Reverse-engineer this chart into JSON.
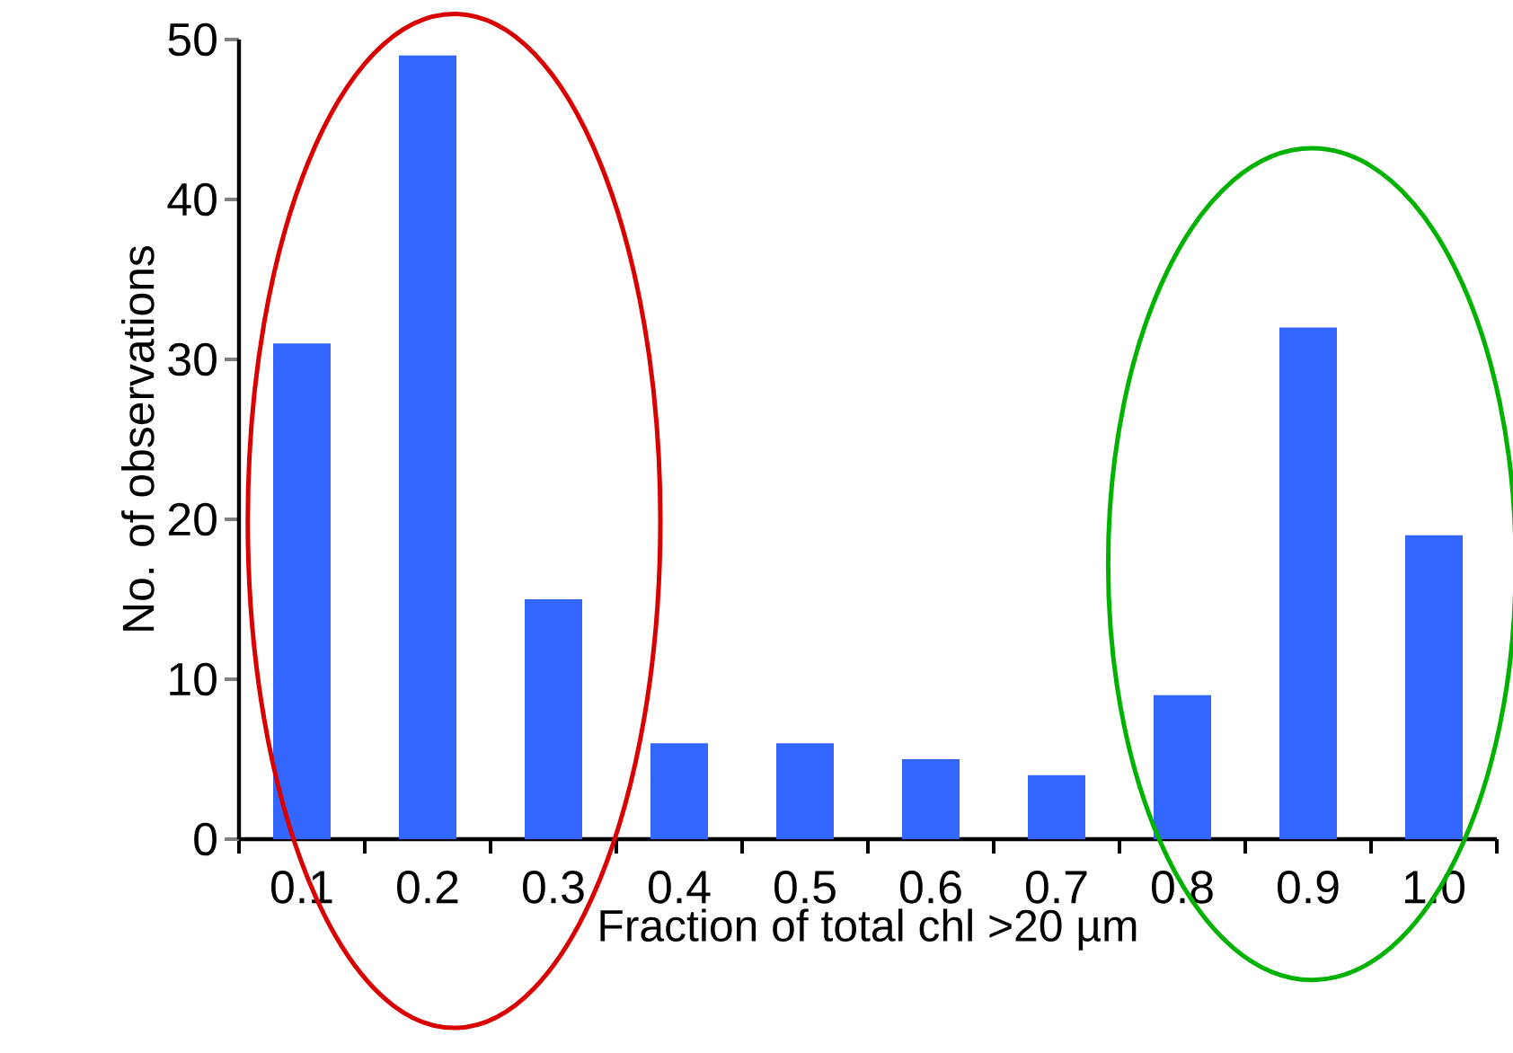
{
  "chart_data": {
    "type": "bar",
    "categories": [
      "0.1",
      "0.2",
      "0.3",
      "0.4",
      "0.5",
      "0.6",
      "0.7",
      "0.8",
      "0.9",
      "1.0"
    ],
    "values": [
      31,
      49,
      15,
      6,
      6,
      5,
      4,
      9,
      32,
      19
    ],
    "color": "#3366ff",
    "xlabel": "Fraction of total chl >20 µm",
    "ylabel": "No. of observations",
    "ylim": [
      0,
      50
    ],
    "yticks": [
      0,
      10,
      20,
      30,
      40,
      50
    ],
    "grid": false
  }
}
